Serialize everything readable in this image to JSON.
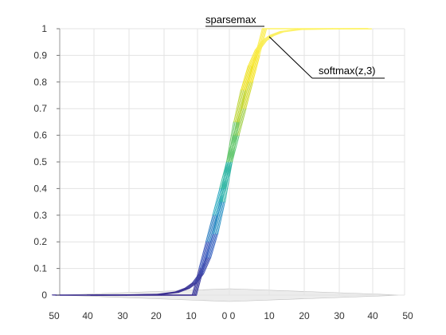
{
  "chart_data": {
    "type": "line",
    "title": "",
    "xlabel": "",
    "ylabel": "",
    "ylim": [
      0,
      1
    ],
    "grid": true,
    "y_ticks": [
      "0",
      "0.1",
      "0.2",
      "0.3",
      "0.4",
      "0.5",
      "0.6",
      "0.7",
      "0.8",
      "0.9",
      "1"
    ],
    "x_ticks_left": [
      "50",
      "40",
      "30",
      "20",
      "10",
      "0"
    ],
    "x_ticks_right": [
      "0",
      "10",
      "20",
      "30",
      "40",
      "50"
    ],
    "colormap": [
      "#3b2c8f",
      "#3b5bbf",
      "#21a3c4",
      "#2fbf8a",
      "#a8cf3a",
      "#f5e21b",
      "#fdf36b"
    ],
    "annotations": [
      {
        "text": "sparsemax",
        "points_to": [
          10,
          1.0
        ]
      },
      {
        "text": "softmax(z,3)",
        "points_to": [
          10,
          0.96
        ]
      }
    ],
    "series": [
      {
        "x": [
          -50,
          -40,
          -30,
          -20,
          -10,
          -8,
          -6,
          -4,
          -2,
          0,
          2,
          4,
          6,
          8,
          10,
          20,
          30,
          40
        ],
        "y": [
          0,
          0,
          0,
          0,
          0,
          0.1,
          0.2,
          0.3,
          0.4,
          0.5,
          0.6,
          0.7,
          0.8,
          0.9,
          1.0,
          1.0,
          1.0,
          1.0
        ]
      },
      {
        "x": [
          -40,
          -30,
          -20,
          -15,
          -12,
          -10,
          -8,
          -6,
          -4,
          -2,
          0,
          2,
          4,
          6,
          8,
          10,
          12,
          15,
          20,
          30,
          40
        ],
        "y": [
          0.0,
          0.0003,
          0.0025,
          0.011,
          0.026,
          0.045,
          0.08,
          0.14,
          0.23,
          0.35,
          0.5,
          0.65,
          0.77,
          0.86,
          0.92,
          0.955,
          0.974,
          0.989,
          0.9975,
          0.9997,
          1.0
        ]
      }
    ]
  }
}
